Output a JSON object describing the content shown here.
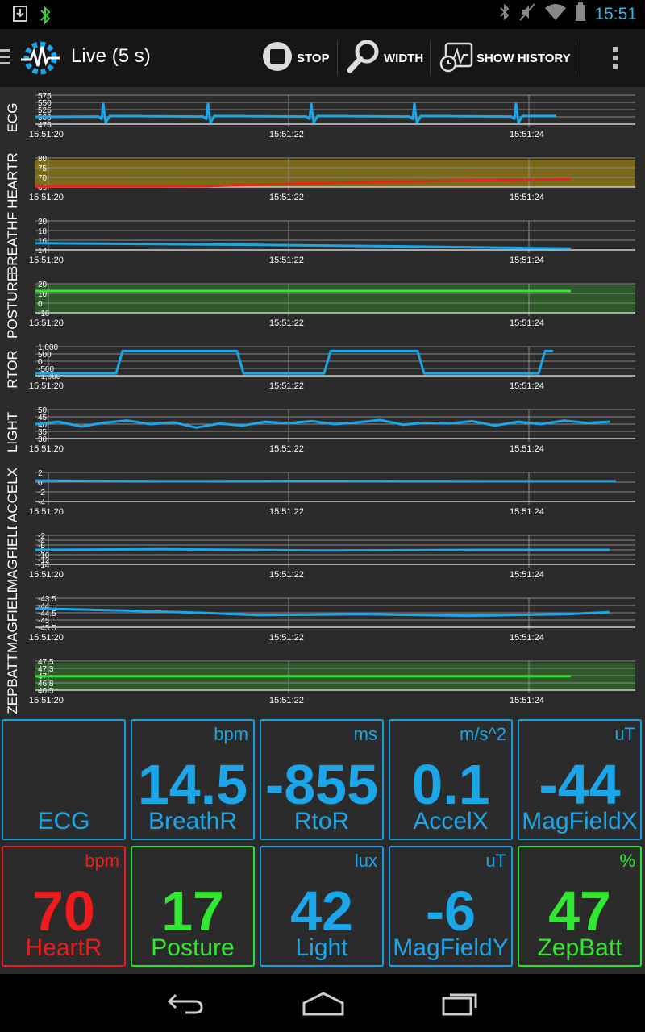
{
  "status": {
    "time": "15:51"
  },
  "header": {
    "title": "Live (5 s)",
    "stop_label": "STOP",
    "width_label": "WIDTH",
    "history_label": "SHOW HISTORY"
  },
  "charts": [
    {
      "label": "ECG",
      "yticks": [
        "575",
        "550",
        "525",
        "500",
        "475"
      ],
      "xticks": [
        "15:51:20",
        "15:51:22",
        "15:51:24"
      ],
      "color": "#1aa6e8",
      "band": ""
    },
    {
      "label": "HEARTR",
      "yticks": [
        "80",
        "75",
        "70",
        "65"
      ],
      "xticks": [
        "15:51:20",
        "15:51:22",
        "15:51:24"
      ],
      "color": "#e8241c",
      "band": "#7a6a1a"
    },
    {
      "label": "BREATHF",
      "yticks": [
        "20",
        "18",
        "16",
        "14"
      ],
      "xticks": [
        "15:51:20",
        "15:51:22",
        "15:51:24"
      ],
      "color": "#1aa6e8",
      "band": ""
    },
    {
      "label": "POSTURE",
      "yticks": [
        "20",
        "10",
        "0",
        "-10"
      ],
      "xticks": [
        "15:51:20",
        "15:51:22",
        "15:51:24"
      ],
      "color": "#30e830",
      "band": "#2e5a2a"
    },
    {
      "label": "RTOR",
      "yticks": [
        "1,000",
        "500",
        "0",
        "-500",
        "-1,000"
      ],
      "xticks": [
        "15:51:20",
        "15:51:22",
        "15:51:24"
      ],
      "color": "#1aa6e8",
      "band": ""
    },
    {
      "label": "LIGHT",
      "yticks": [
        "50",
        "45",
        "40",
        "35",
        "30"
      ],
      "xticks": [
        "15:51:20",
        "15:51:22",
        "15:51:24"
      ],
      "color": "#1aa6e8",
      "band": ""
    },
    {
      "label": "ACCELX",
      "yticks": [
        "2",
        "0",
        "-2",
        "-4"
      ],
      "xticks": [
        "15:51:20",
        "15:51:22",
        "15:51:24"
      ],
      "color": "#1aa6e8",
      "band": ""
    },
    {
      "label": "MAGFIELD",
      "yticks": [
        "-2",
        "-4",
        "-6",
        "-8",
        "-10",
        "-12",
        "-14"
      ],
      "xticks": [
        "15:51:20",
        "15:51:22",
        "15:51:24"
      ],
      "color": "#1aa6e8",
      "band": ""
    },
    {
      "label": "MAGFIELD",
      "yticks": [
        "-43.5",
        "-44",
        "-44.5",
        "-45",
        "-45.5"
      ],
      "xticks": [
        "15:51:20",
        "15:51:22",
        "15:51:24"
      ],
      "color": "#1aa6e8",
      "band": ""
    },
    {
      "label": "ZEPBATT",
      "yticks": [
        "47.5",
        "47.3",
        "47",
        "46.8",
        "46.5"
      ],
      "xticks": [
        "15:51:20",
        "15:51:22",
        "15:51:24"
      ],
      "color": "#30e830",
      "band": "#2e5a2a"
    }
  ],
  "tiles": [
    {
      "name": "ECG",
      "unit": "",
      "value": "",
      "theme": "blue"
    },
    {
      "name": "BreathR",
      "unit": "bpm",
      "value": "14.5",
      "theme": "blue"
    },
    {
      "name": "RtoR",
      "unit": "ms",
      "value": "-855",
      "theme": "blue"
    },
    {
      "name": "AccelX",
      "unit": "m/s^2",
      "value": "0.1",
      "theme": "blue"
    },
    {
      "name": "MagFieldX",
      "unit": "uT",
      "value": "-44",
      "theme": "blue"
    },
    {
      "name": "HeartR",
      "unit": "bpm",
      "value": "70",
      "theme": "red"
    },
    {
      "name": "Posture",
      "unit": "",
      "value": "17",
      "theme": "green"
    },
    {
      "name": "Light",
      "unit": "lux",
      "value": "42",
      "theme": "blue"
    },
    {
      "name": "MagFieldY",
      "unit": "uT",
      "value": "-6",
      "theme": "blue"
    },
    {
      "name": "ZepBatt",
      "unit": "%",
      "value": "47",
      "theme": "green"
    }
  ]
}
